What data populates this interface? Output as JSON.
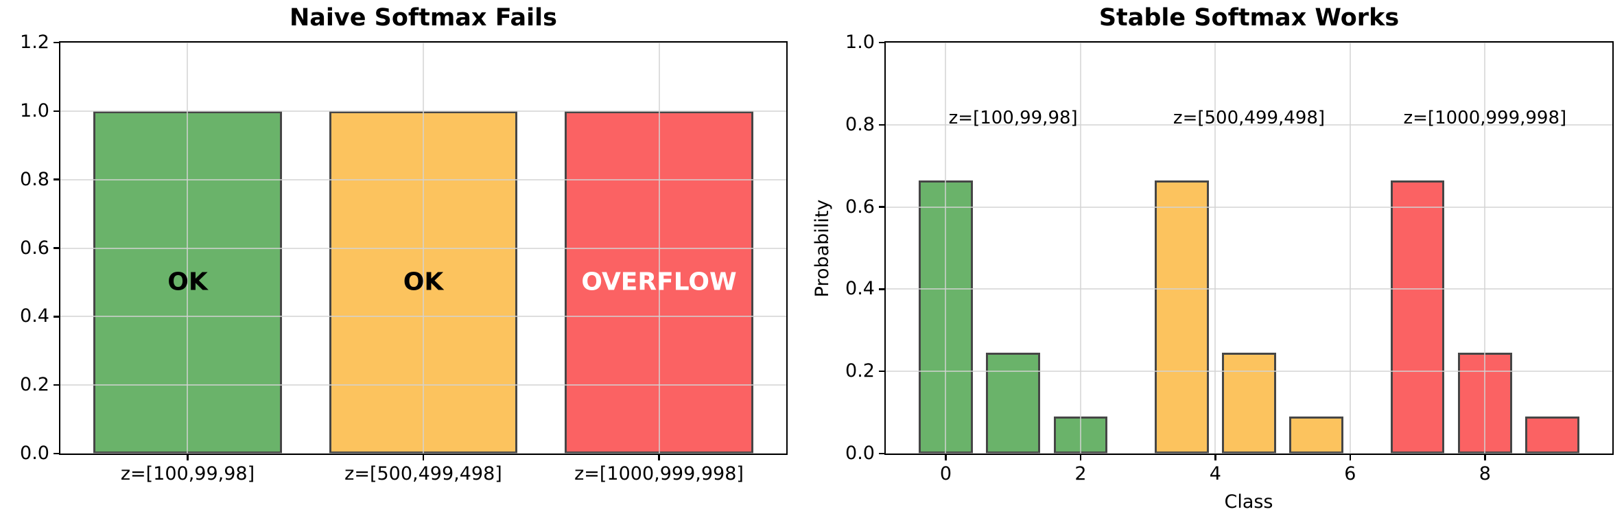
{
  "figure": {
    "background": "#ffffff",
    "palette": {
      "green": "#6ab36a",
      "orange": "#fcc35e",
      "red": "#fb6263",
      "bar_edge": "#464646",
      "grid": "rgba(211,211,211,0.75)",
      "spine": "#000000",
      "text": "#000000"
    }
  },
  "chart_data": [
    {
      "type": "bar",
      "title": "Naive Softmax Fails",
      "xlabel": "",
      "ylabel": "",
      "ylim": [
        0,
        1.2
      ],
      "yticks": [
        0,
        0.2,
        0.4,
        0.6,
        0.8,
        1.0,
        1.2
      ],
      "xlim": [
        -0.54,
        2.54
      ],
      "bar_width": 0.8,
      "grid": true,
      "categories": [
        "z=[100,99,98]",
        "z=[500,499,498]",
        "z=[1000,999,998]"
      ],
      "bars": [
        {
          "position": 0,
          "value": 1.0,
          "color": "#6ab36a",
          "label": "OK",
          "label_color": "#000000",
          "label_y": 0.5,
          "tick_label": "z=[100,99,98]"
        },
        {
          "position": 1,
          "value": 1.0,
          "color": "#fcc35e",
          "label": "OK",
          "label_color": "#000000",
          "label_y": 0.5,
          "tick_label": "z=[500,499,498]"
        },
        {
          "position": 2,
          "value": 1.0,
          "color": "#fb6263",
          "label": "OVERFLOW",
          "label_color": "#ffffff",
          "label_y": 0.5,
          "tick_label": "z=[1000,999,998]"
        }
      ]
    },
    {
      "type": "bar",
      "title": "Stable Softmax Works",
      "xlabel": "Class",
      "ylabel": "Probability",
      "ylim": [
        0,
        1.0
      ],
      "yticks": [
        0,
        0.2,
        0.4,
        0.6,
        0.8,
        1.0
      ],
      "xlim": [
        -0.89,
        9.89
      ],
      "bar_width": 0.8,
      "grid": true,
      "xticks": [
        {
          "position": 0,
          "label": "0"
        },
        {
          "position": 2,
          "label": "2"
        },
        {
          "position": 4,
          "label": "4"
        },
        {
          "position": 6,
          "label": "6"
        },
        {
          "position": 8,
          "label": "8"
        }
      ],
      "groups": [
        {
          "annotation": "z=[100,99,98]",
          "annotation_x": 1,
          "annotation_y": 0.8,
          "color": "#6ab36a",
          "positions": [
            0,
            1,
            2
          ],
          "values": [
            0.665,
            0.245,
            0.09
          ]
        },
        {
          "annotation": "z=[500,499,498]",
          "annotation_x": 4.5,
          "annotation_y": 0.8,
          "color": "#fcc35e",
          "positions": [
            3.5,
            4.5,
            5.5
          ],
          "values": [
            0.665,
            0.245,
            0.09
          ]
        },
        {
          "annotation": "z=[1000,999,998]",
          "annotation_x": 8,
          "annotation_y": 0.8,
          "color": "#fb6263",
          "positions": [
            7,
            8,
            9
          ],
          "values": [
            0.665,
            0.245,
            0.09
          ]
        }
      ]
    }
  ]
}
